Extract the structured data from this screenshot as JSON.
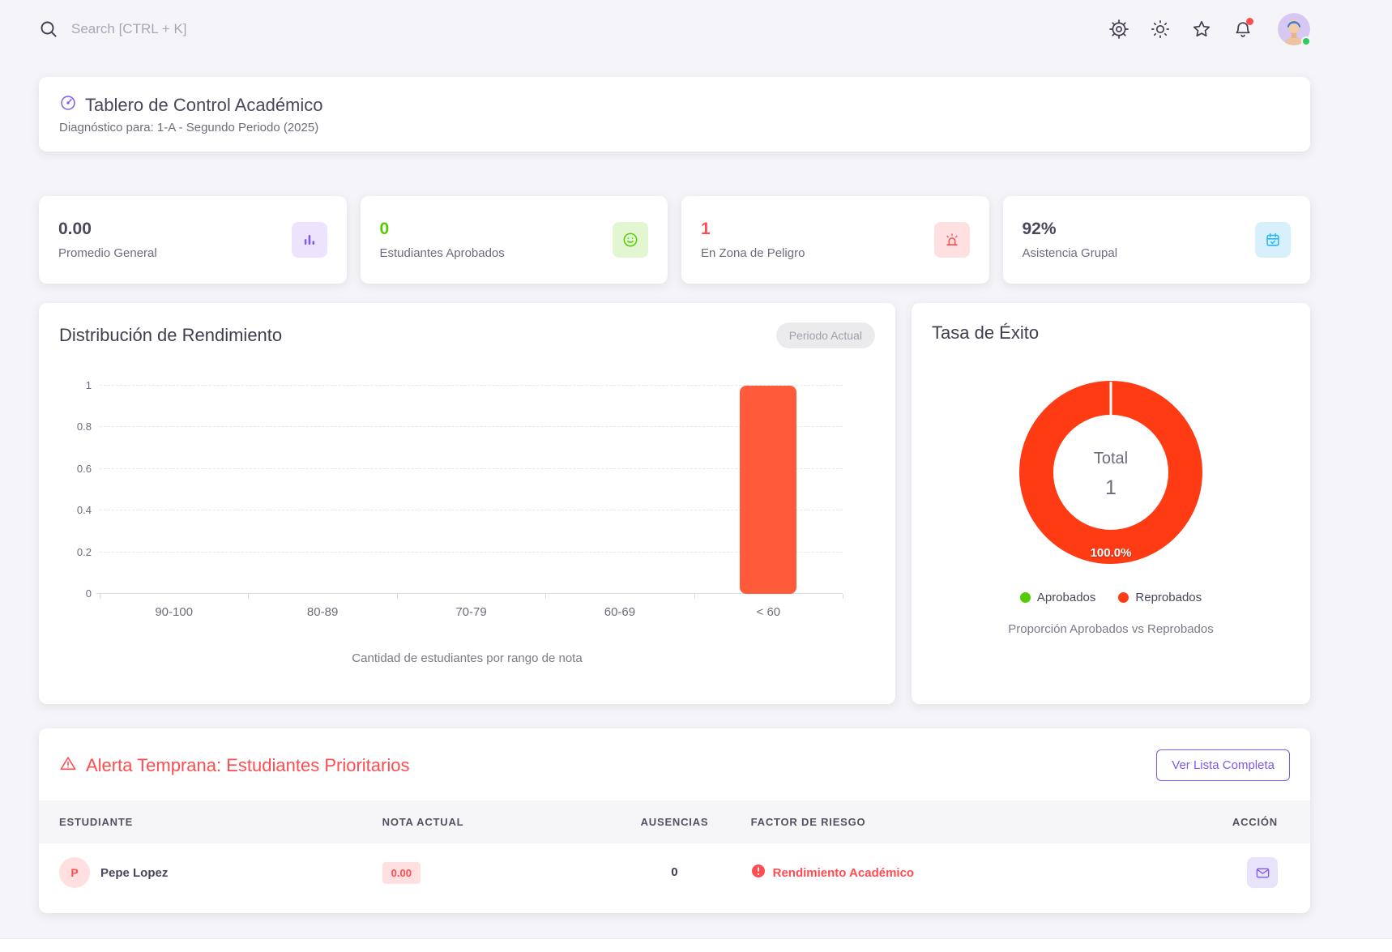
{
  "topbar": {
    "search_placeholder": "Search [CTRL + K]",
    "icons": [
      "search-icon",
      "settings-gear-icon",
      "theme-sun-icon",
      "star-icon",
      "notifications-bell-icon",
      "user-avatar"
    ],
    "notification_dot": true,
    "user_status": "online"
  },
  "header": {
    "title": "Tablero de Control Académico",
    "subtitle": "Diagnóstico para: 1-A - Segundo Periodo (2025)",
    "icon": "gauge-icon"
  },
  "stats": [
    {
      "value": "0.00",
      "label": "Promedio General",
      "icon": "bar-chart-icon",
      "value_color": "#4b465c",
      "accent": "#7e57f5"
    },
    {
      "value": "0",
      "label": "Estudiantes Aprobados",
      "icon": "smiley-icon",
      "value_color": "#56ca00",
      "accent": "#56ca00"
    },
    {
      "value": "1",
      "label": "En Zona de Peligro",
      "icon": "siren-icon",
      "value_color": "#ff4c51",
      "accent": "#ff4c51"
    },
    {
      "value": "92%",
      "label": "Asistencia Grupal",
      "icon": "calendar-check-icon",
      "value_color": "#4b465c",
      "accent": "#29b6f6"
    }
  ],
  "chart_data": [
    {
      "type": "bar",
      "title": "Distribución de Rendimiento",
      "badge": "Periodo Actual",
      "categories": [
        "90-100",
        "80-89",
        "70-79",
        "60-69",
        "< 60"
      ],
      "values": [
        0,
        0,
        0,
        0,
        1
      ],
      "ylim": [
        0,
        1
      ],
      "yticks": [
        0,
        0.2,
        0.4,
        0.6,
        0.8,
        1
      ],
      "bar_color": "#ff5b3a",
      "grid": "horizontal-dashed",
      "legend": false,
      "caption": "Cantidad de estudiantes por rango de nota"
    },
    {
      "type": "pie",
      "title": "Tasa de Éxito",
      "labels": [
        "Aprobados",
        "Reprobados"
      ],
      "values": [
        0,
        1
      ],
      "colors": [
        "#56ca00",
        "#ff3b14"
      ],
      "percent_label": "100.0%",
      "center_label": "Total",
      "center_value": "1",
      "legend_position": "bottom",
      "caption": "Proporción Aprobados vs Reprobados"
    }
  ],
  "alert": {
    "title": "Alerta Temprana: Estudiantes Prioritarios",
    "button_label": "Ver Lista Completa",
    "table": {
      "headers": [
        "Estudiante",
        "Nota Actual",
        "Ausencias",
        "Factor de Riesgo",
        "Acción"
      ],
      "rows": [
        {
          "initial": "P",
          "name": "Pepe Lopez",
          "grade": "0.00",
          "absences": "0",
          "risk": "Rendimiento Académico",
          "action": "mail-icon"
        }
      ]
    }
  },
  "colors": {
    "page_bg": "#f5f5f9",
    "primary": "#7e57f5",
    "success": "#56ca00",
    "danger": "#ff4c51",
    "info": "#29b6f6",
    "bar": "#ff5b3a",
    "donut_red": "#ff3b14",
    "heading": "#4b465c",
    "muted": "#6f6b7d"
  }
}
